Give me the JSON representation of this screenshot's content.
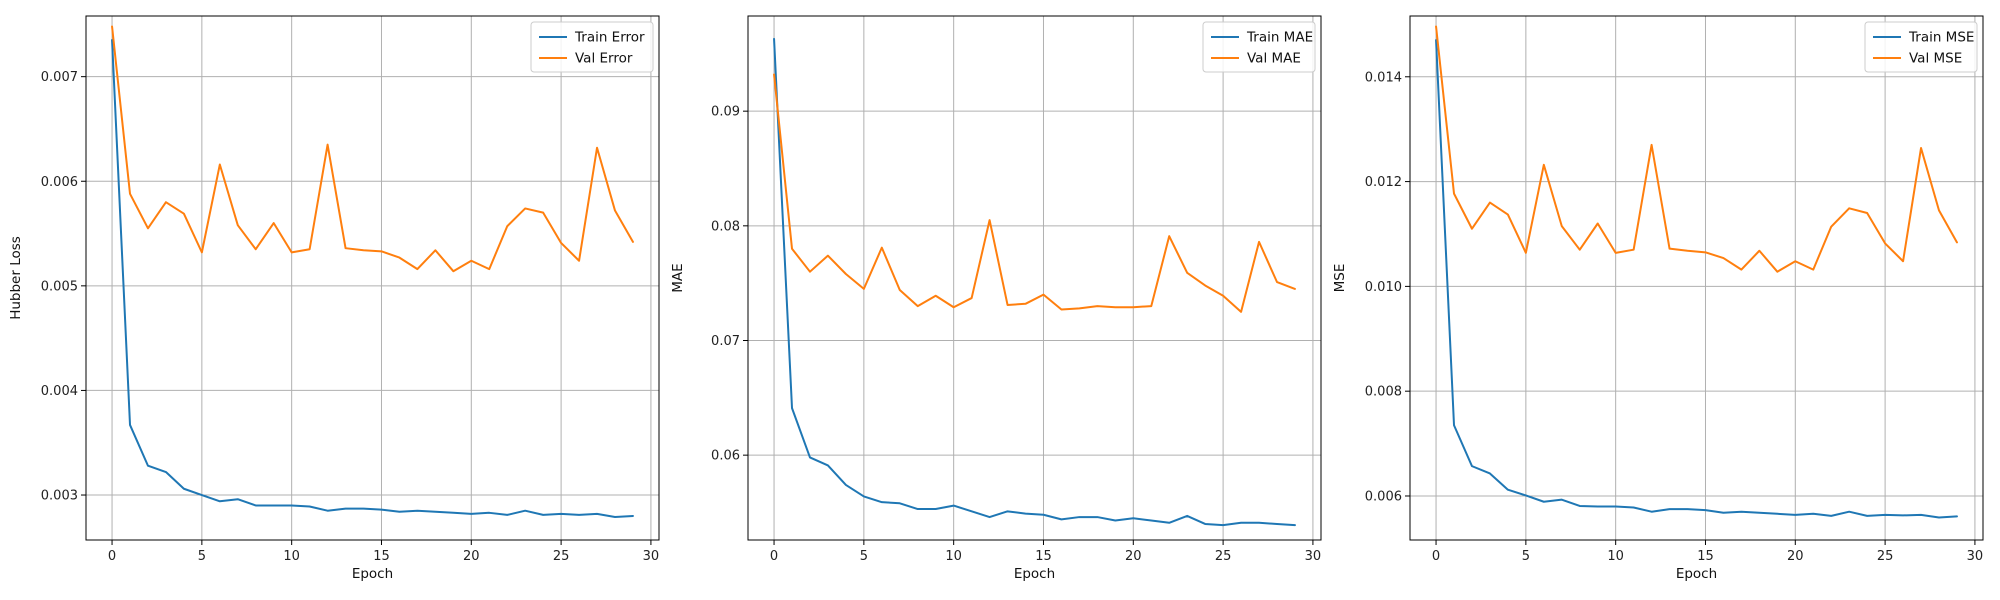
{
  "colors": {
    "train": "#1f77b4",
    "val": "#ff7f0e",
    "grid": "#b0b0b0",
    "axis": "#000000"
  },
  "chart_data": [
    {
      "type": "line",
      "xlabel": "Epoch",
      "ylabel": "Hubber Loss",
      "grid": true,
      "legend": "top-right",
      "xlim": [
        -1.45,
        30.45
      ],
      "ylim": [
        0.00257,
        0.00758
      ],
      "xticks": [
        0,
        5,
        10,
        15,
        20,
        25,
        30
      ],
      "xtick_labels": [
        "0",
        "5",
        "10",
        "15",
        "20",
        "25",
        "30"
      ],
      "yticks": [
        0.003,
        0.004,
        0.005,
        0.006,
        0.007
      ],
      "ytick_labels": [
        "0.003",
        "0.004",
        "0.005",
        "0.006",
        "0.007"
      ],
      "x": [
        0,
        1,
        2,
        3,
        4,
        5,
        6,
        7,
        8,
        9,
        10,
        11,
        12,
        13,
        14,
        15,
        16,
        17,
        18,
        19,
        20,
        21,
        22,
        23,
        24,
        25,
        26,
        27,
        28,
        29
      ],
      "series": [
        {
          "name": "Train Error",
          "color": "#1f77b4",
          "values": [
            0.00735,
            0.00367,
            0.00328,
            0.00322,
            0.00306,
            0.003,
            0.00294,
            0.00296,
            0.0029,
            0.0029,
            0.0029,
            0.00289,
            0.00285,
            0.00287,
            0.00287,
            0.00286,
            0.00284,
            0.00285,
            0.00284,
            0.00283,
            0.00282,
            0.00283,
            0.00281,
            0.00285,
            0.00281,
            0.00282,
            0.00281,
            0.00282,
            0.00279,
            0.0028
          ]
        },
        {
          "name": "Val Error",
          "color": "#ff7f0e",
          "values": [
            0.00748,
            0.00588,
            0.00555,
            0.0058,
            0.00569,
            0.00532,
            0.00616,
            0.00558,
            0.00535,
            0.0056,
            0.00532,
            0.00535,
            0.00635,
            0.00536,
            0.00534,
            0.00533,
            0.00527,
            0.00516,
            0.00534,
            0.00514,
            0.00524,
            0.00516,
            0.00557,
            0.00574,
            0.0057,
            0.00541,
            0.00524,
            0.00632,
            0.00572,
            0.00542
          ]
        }
      ]
    },
    {
      "type": "line",
      "xlabel": "Epoch",
      "ylabel": "MAE",
      "grid": true,
      "legend": "top-right",
      "xlim": [
        -1.45,
        30.45
      ],
      "ylim": [
        0.0526,
        0.0983
      ],
      "xticks": [
        0,
        5,
        10,
        15,
        20,
        25,
        30
      ],
      "xtick_labels": [
        "0",
        "5",
        "10",
        "15",
        "20",
        "25",
        "30"
      ],
      "yticks": [
        0.06,
        0.07,
        0.08,
        0.09
      ],
      "ytick_labels": [
        "0.06",
        "0.07",
        "0.08",
        "0.09"
      ],
      "x": [
        0,
        1,
        2,
        3,
        4,
        5,
        6,
        7,
        8,
        9,
        10,
        11,
        12,
        13,
        14,
        15,
        16,
        17,
        18,
        19,
        20,
        21,
        22,
        23,
        24,
        25,
        26,
        27,
        28,
        29
      ],
      "series": [
        {
          "name": "Train MAE",
          "color": "#1f77b4",
          "values": [
            0.0963,
            0.0641,
            0.0598,
            0.0591,
            0.0574,
            0.0564,
            0.0559,
            0.0558,
            0.0553,
            0.0553,
            0.0556,
            0.0551,
            0.0546,
            0.0551,
            0.0549,
            0.0548,
            0.0544,
            0.0546,
            0.0546,
            0.0543,
            0.0545,
            0.0543,
            0.0541,
            0.0547,
            0.054,
            0.0539,
            0.0541,
            0.0541,
            0.054,
            0.0539
          ]
        },
        {
          "name": "Val MAE",
          "color": "#ff7f0e",
          "values": [
            0.0932,
            0.078,
            0.076,
            0.0774,
            0.0758,
            0.0745,
            0.0781,
            0.0744,
            0.073,
            0.0739,
            0.0729,
            0.0737,
            0.0805,
            0.0731,
            0.0732,
            0.074,
            0.0727,
            0.0728,
            0.073,
            0.0729,
            0.0729,
            0.073,
            0.0791,
            0.0759,
            0.0748,
            0.0739,
            0.0725,
            0.0786,
            0.0751,
            0.0745
          ]
        }
      ]
    },
    {
      "type": "line",
      "xlabel": "Epoch",
      "ylabel": "MSE",
      "grid": true,
      "legend": "top-right",
      "xlim": [
        -1.45,
        30.45
      ],
      "ylim": [
        0.00516,
        0.01516
      ],
      "xticks": [
        0,
        5,
        10,
        15,
        20,
        25,
        30
      ],
      "xtick_labels": [
        "0",
        "5",
        "10",
        "15",
        "20",
        "25",
        "30"
      ],
      "yticks": [
        0.006,
        0.008,
        0.01,
        0.012,
        0.014
      ],
      "ytick_labels": [
        "0.006",
        "0.008",
        "0.010",
        "0.012",
        "0.014"
      ],
      "x": [
        0,
        1,
        2,
        3,
        4,
        5,
        6,
        7,
        8,
        9,
        10,
        11,
        12,
        13,
        14,
        15,
        16,
        17,
        18,
        19,
        20,
        21,
        22,
        23,
        24,
        25,
        26,
        27,
        28,
        29
      ],
      "series": [
        {
          "name": "Train MSE",
          "color": "#1f77b4",
          "values": [
            0.0147,
            0.00735,
            0.00657,
            0.00643,
            0.00612,
            0.00601,
            0.00589,
            0.00593,
            0.00581,
            0.0058,
            0.0058,
            0.00578,
            0.0057,
            0.00575,
            0.00575,
            0.00573,
            0.00568,
            0.0057,
            0.00568,
            0.00566,
            0.00564,
            0.00566,
            0.00562,
            0.0057,
            0.00562,
            0.00564,
            0.00563,
            0.00564,
            0.00559,
            0.00561
          ]
        },
        {
          "name": "Val MSE",
          "color": "#ff7f0e",
          "values": [
            0.01496,
            0.01177,
            0.0111,
            0.0116,
            0.01137,
            0.01064,
            0.01232,
            0.01115,
            0.0107,
            0.0112,
            0.01064,
            0.0107,
            0.0127,
            0.01072,
            0.01068,
            0.01065,
            0.01054,
            0.01032,
            0.01068,
            0.01028,
            0.01048,
            0.01032,
            0.01114,
            0.01149,
            0.0114,
            0.01082,
            0.01048,
            0.01264,
            0.01145,
            0.01084
          ]
        }
      ]
    }
  ]
}
